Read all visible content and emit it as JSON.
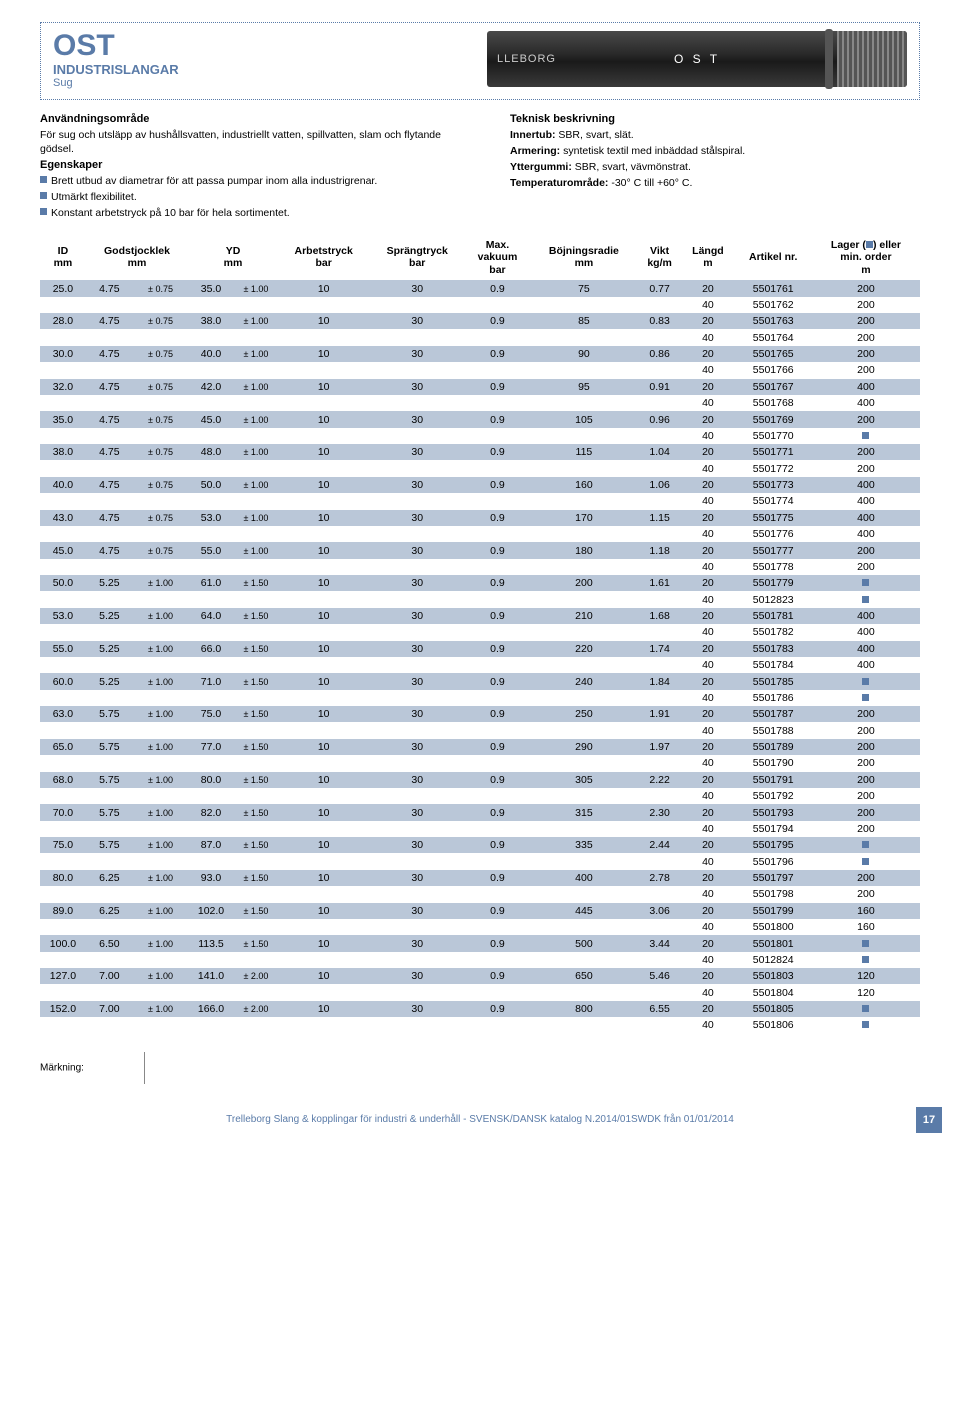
{
  "header": {
    "title": "OST",
    "subtitle1": "INDUSTRISLANGAR",
    "subtitle2": "Sug",
    "hose_text": "O S T",
    "brand_left": "LLEBORG"
  },
  "desc": {
    "left": {
      "h1": "Användningsområde",
      "p1": "För sug och utsläpp av hushållsvatten, industriellt vatten, spillvatten, slam och flytande gödsel.",
      "h2": "Egenskaper",
      "b1": "Brett utbud av diametrar för att passa pumpar inom alla industrigrenar.",
      "b2": "Utmärkt flexibilitet.",
      "b3": "Konstant arbetstryck på 10 bar för hela sortimentet."
    },
    "right": {
      "h1": "Teknisk beskrivning",
      "l1": "Innertub:",
      "v1": " SBR, svart, slät.",
      "l2": "Armering:",
      "v2": " syntetisk textil med inbäddad stålspiral.",
      "l3": "Yttergummi:",
      "v3": " SBR, svart, vävmönstrat.",
      "l4": "Temperaturområde:",
      "v4": " -30° C till +60° C."
    }
  },
  "table": {
    "headers": {
      "id": "ID\nmm",
      "gods": "Godstjocklek\nmm",
      "yd": "YD\nmm",
      "arb": "Arbetstryck\nbar",
      "spr": "Sprängtryck\nbar",
      "vak": "Max.\nvakuum\nbar",
      "boj": "Böjningsradie\nmm",
      "vikt": "Vikt\nkg/m",
      "langd": "Längd\nm",
      "art": "Artikel nr.",
      "lager": "Lager (■) eller\nmin. order\nm"
    },
    "rows": [
      {
        "s": 1,
        "c": [
          "25.0",
          "4.75",
          "± 0.75",
          "35.0",
          "± 1.00",
          "10",
          "30",
          "0.9",
          "75",
          "0.77",
          "20",
          "5501761",
          "200"
        ]
      },
      {
        "s": 0,
        "c": [
          "",
          "",
          "",
          "",
          "",
          "",
          "",
          "",
          "",
          "",
          "40",
          "5501762",
          "200"
        ]
      },
      {
        "s": 1,
        "c": [
          "28.0",
          "4.75",
          "± 0.75",
          "38.0",
          "± 1.00",
          "10",
          "30",
          "0.9",
          "85",
          "0.83",
          "20",
          "5501763",
          "200"
        ]
      },
      {
        "s": 0,
        "c": [
          "",
          "",
          "",
          "",
          "",
          "",
          "",
          "",
          "",
          "",
          "40",
          "5501764",
          "200"
        ]
      },
      {
        "s": 1,
        "c": [
          "30.0",
          "4.75",
          "± 0.75",
          "40.0",
          "± 1.00",
          "10",
          "30",
          "0.9",
          "90",
          "0.86",
          "20",
          "5501765",
          "200"
        ]
      },
      {
        "s": 0,
        "c": [
          "",
          "",
          "",
          "",
          "",
          "",
          "",
          "",
          "",
          "",
          "40",
          "5501766",
          "200"
        ]
      },
      {
        "s": 1,
        "c": [
          "32.0",
          "4.75",
          "± 0.75",
          "42.0",
          "± 1.00",
          "10",
          "30",
          "0.9",
          "95",
          "0.91",
          "20",
          "5501767",
          "400"
        ]
      },
      {
        "s": 0,
        "c": [
          "",
          "",
          "",
          "",
          "",
          "",
          "",
          "",
          "",
          "",
          "40",
          "5501768",
          "400"
        ]
      },
      {
        "s": 1,
        "c": [
          "35.0",
          "4.75",
          "± 0.75",
          "45.0",
          "± 1.00",
          "10",
          "30",
          "0.9",
          "105",
          "0.96",
          "20",
          "5501769",
          "200"
        ]
      },
      {
        "s": 0,
        "c": [
          "",
          "",
          "",
          "",
          "",
          "",
          "",
          "",
          "",
          "",
          "40",
          "5501770",
          "■"
        ]
      },
      {
        "s": 1,
        "c": [
          "38.0",
          "4.75",
          "± 0.75",
          "48.0",
          "± 1.00",
          "10",
          "30",
          "0.9",
          "115",
          "1.04",
          "20",
          "5501771",
          "200"
        ]
      },
      {
        "s": 0,
        "c": [
          "",
          "",
          "",
          "",
          "",
          "",
          "",
          "",
          "",
          "",
          "40",
          "5501772",
          "200"
        ]
      },
      {
        "s": 1,
        "c": [
          "40.0",
          "4.75",
          "± 0.75",
          "50.0",
          "± 1.00",
          "10",
          "30",
          "0.9",
          "160",
          "1.06",
          "20",
          "5501773",
          "400"
        ]
      },
      {
        "s": 0,
        "c": [
          "",
          "",
          "",
          "",
          "",
          "",
          "",
          "",
          "",
          "",
          "40",
          "5501774",
          "400"
        ]
      },
      {
        "s": 1,
        "c": [
          "43.0",
          "4.75",
          "± 0.75",
          "53.0",
          "± 1.00",
          "10",
          "30",
          "0.9",
          "170",
          "1.15",
          "20",
          "5501775",
          "400"
        ]
      },
      {
        "s": 0,
        "c": [
          "",
          "",
          "",
          "",
          "",
          "",
          "",
          "",
          "",
          "",
          "40",
          "5501776",
          "400"
        ]
      },
      {
        "s": 1,
        "c": [
          "45.0",
          "4.75",
          "± 0.75",
          "55.0",
          "± 1.00",
          "10",
          "30",
          "0.9",
          "180",
          "1.18",
          "20",
          "5501777",
          "200"
        ]
      },
      {
        "s": 0,
        "c": [
          "",
          "",
          "",
          "",
          "",
          "",
          "",
          "",
          "",
          "",
          "40",
          "5501778",
          "200"
        ]
      },
      {
        "s": 1,
        "c": [
          "50.0",
          "5.25",
          "± 1.00",
          "61.0",
          "± 1.50",
          "10",
          "30",
          "0.9",
          "200",
          "1.61",
          "20",
          "5501779",
          "■"
        ]
      },
      {
        "s": 0,
        "c": [
          "",
          "",
          "",
          "",
          "",
          "",
          "",
          "",
          "",
          "",
          "40",
          "5012823",
          "■"
        ]
      },
      {
        "s": 1,
        "c": [
          "53.0",
          "5.25",
          "± 1.00",
          "64.0",
          "± 1.50",
          "10",
          "30",
          "0.9",
          "210",
          "1.68",
          "20",
          "5501781",
          "400"
        ]
      },
      {
        "s": 0,
        "c": [
          "",
          "",
          "",
          "",
          "",
          "",
          "",
          "",
          "",
          "",
          "40",
          "5501782",
          "400"
        ]
      },
      {
        "s": 1,
        "c": [
          "55.0",
          "5.25",
          "± 1.00",
          "66.0",
          "± 1.50",
          "10",
          "30",
          "0.9",
          "220",
          "1.74",
          "20",
          "5501783",
          "400"
        ]
      },
      {
        "s": 0,
        "c": [
          "",
          "",
          "",
          "",
          "",
          "",
          "",
          "",
          "",
          "",
          "40",
          "5501784",
          "400"
        ]
      },
      {
        "s": 1,
        "c": [
          "60.0",
          "5.25",
          "± 1.00",
          "71.0",
          "± 1.50",
          "10",
          "30",
          "0.9",
          "240",
          "1.84",
          "20",
          "5501785",
          "■"
        ]
      },
      {
        "s": 0,
        "c": [
          "",
          "",
          "",
          "",
          "",
          "",
          "",
          "",
          "",
          "",
          "40",
          "5501786",
          "■"
        ]
      },
      {
        "s": 1,
        "c": [
          "63.0",
          "5.75",
          "± 1.00",
          "75.0",
          "± 1.50",
          "10",
          "30",
          "0.9",
          "250",
          "1.91",
          "20",
          "5501787",
          "200"
        ]
      },
      {
        "s": 0,
        "c": [
          "",
          "",
          "",
          "",
          "",
          "",
          "",
          "",
          "",
          "",
          "40",
          "5501788",
          "200"
        ]
      },
      {
        "s": 1,
        "c": [
          "65.0",
          "5.75",
          "± 1.00",
          "77.0",
          "± 1.50",
          "10",
          "30",
          "0.9",
          "290",
          "1.97",
          "20",
          "5501789",
          "200"
        ]
      },
      {
        "s": 0,
        "c": [
          "",
          "",
          "",
          "",
          "",
          "",
          "",
          "",
          "",
          "",
          "40",
          "5501790",
          "200"
        ]
      },
      {
        "s": 1,
        "c": [
          "68.0",
          "5.75",
          "± 1.00",
          "80.0",
          "± 1.50",
          "10",
          "30",
          "0.9",
          "305",
          "2.22",
          "20",
          "5501791",
          "200"
        ]
      },
      {
        "s": 0,
        "c": [
          "",
          "",
          "",
          "",
          "",
          "",
          "",
          "",
          "",
          "",
          "40",
          "5501792",
          "200"
        ]
      },
      {
        "s": 1,
        "c": [
          "70.0",
          "5.75",
          "± 1.00",
          "82.0",
          "± 1.50",
          "10",
          "30",
          "0.9",
          "315",
          "2.30",
          "20",
          "5501793",
          "200"
        ]
      },
      {
        "s": 0,
        "c": [
          "",
          "",
          "",
          "",
          "",
          "",
          "",
          "",
          "",
          "",
          "40",
          "5501794",
          "200"
        ]
      },
      {
        "s": 1,
        "c": [
          "75.0",
          "5.75",
          "± 1.00",
          "87.0",
          "± 1.50",
          "10",
          "30",
          "0.9",
          "335",
          "2.44",
          "20",
          "5501795",
          "■"
        ]
      },
      {
        "s": 0,
        "c": [
          "",
          "",
          "",
          "",
          "",
          "",
          "",
          "",
          "",
          "",
          "40",
          "5501796",
          "■"
        ]
      },
      {
        "s": 1,
        "c": [
          "80.0",
          "6.25",
          "± 1.00",
          "93.0",
          "± 1.50",
          "10",
          "30",
          "0.9",
          "400",
          "2.78",
          "20",
          "5501797",
          "200"
        ]
      },
      {
        "s": 0,
        "c": [
          "",
          "",
          "",
          "",
          "",
          "",
          "",
          "",
          "",
          "",
          "40",
          "5501798",
          "200"
        ]
      },
      {
        "s": 1,
        "c": [
          "89.0",
          "6.25",
          "± 1.00",
          "102.0",
          "± 1.50",
          "10",
          "30",
          "0.9",
          "445",
          "3.06",
          "20",
          "5501799",
          "160"
        ]
      },
      {
        "s": 0,
        "c": [
          "",
          "",
          "",
          "",
          "",
          "",
          "",
          "",
          "",
          "",
          "40",
          "5501800",
          "160"
        ]
      },
      {
        "s": 1,
        "c": [
          "100.0",
          "6.50",
          "± 1.00",
          "113.5",
          "± 1.50",
          "10",
          "30",
          "0.9",
          "500",
          "3.44",
          "20",
          "5501801",
          "■"
        ]
      },
      {
        "s": 0,
        "c": [
          "",
          "",
          "",
          "",
          "",
          "",
          "",
          "",
          "",
          "",
          "40",
          "5012824",
          "■"
        ]
      },
      {
        "s": 1,
        "c": [
          "127.0",
          "7.00",
          "± 1.00",
          "141.0",
          "± 2.00",
          "10",
          "30",
          "0.9",
          "650",
          "5.46",
          "20",
          "5501803",
          "120"
        ]
      },
      {
        "s": 0,
        "c": [
          "",
          "",
          "",
          "",
          "",
          "",
          "",
          "",
          "",
          "",
          "40",
          "5501804",
          "120"
        ]
      },
      {
        "s": 1,
        "c": [
          "152.0",
          "7.00",
          "± 1.00",
          "166.0",
          "± 2.00",
          "10",
          "30",
          "0.9",
          "800",
          "6.55",
          "20",
          "5501805",
          "■"
        ]
      },
      {
        "s": 0,
        "c": [
          "",
          "",
          "",
          "",
          "",
          "",
          "",
          "",
          "",
          "",
          "40",
          "5501806",
          "■"
        ]
      }
    ]
  },
  "footer": {
    "marking": "Märkning:",
    "line": "Trelleborg Slang & kopplingar för industri & underhåll - SVENSK/DANSK katalog N.2014/01SWDK från 01/01/2014",
    "page": "17"
  },
  "colors": {
    "accent": "#5a7ba8",
    "row_shade": "#bac7d8"
  }
}
